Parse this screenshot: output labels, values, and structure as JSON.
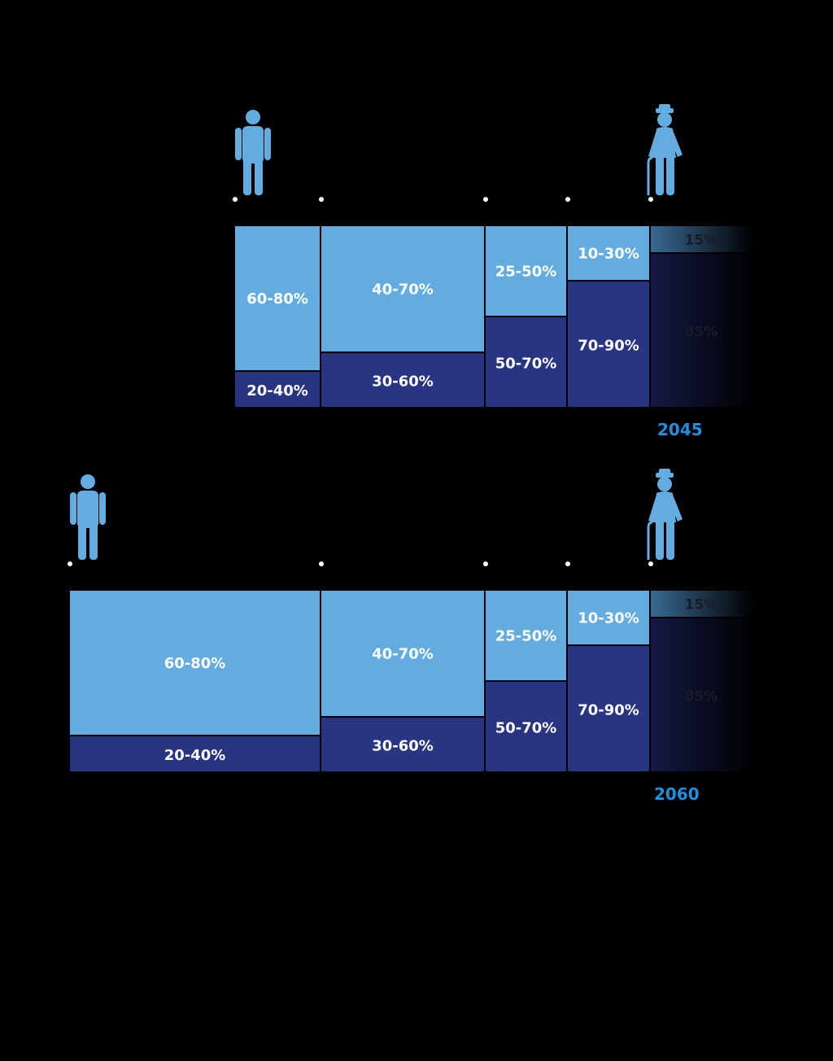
{
  "colors": {
    "light": "#63ace0",
    "dark": "#283583",
    "fade_light": "#3a6b94",
    "fade_dark": "#141a45",
    "year": "#1e90e0",
    "dot": "#ffffff"
  },
  "icons": {
    "start": "person-icon",
    "end": "elderly-person-with-cane-icon"
  },
  "chart_data": [
    {
      "type": "bar",
      "year": "2045",
      "segments": [
        {
          "top_label": "60-80%",
          "top_share": 0.8,
          "bottom_label": "20-40%",
          "bottom_share": 0.2
        },
        {
          "top_label": "40-70%",
          "top_share": 0.7,
          "bottom_label": "30-60%",
          "bottom_share": 0.3
        },
        {
          "top_label": "25-50%",
          "top_share": 0.5,
          "bottom_label": "50-70%",
          "bottom_share": 0.5
        },
        {
          "top_label": "10-30%",
          "top_share": 0.3,
          "bottom_label": "70-90%",
          "bottom_share": 0.7
        },
        {
          "top_label": "15%",
          "top_share": 0.15,
          "bottom_label": "85%",
          "bottom_share": 0.85,
          "faded": true
        }
      ]
    },
    {
      "type": "bar",
      "year": "2060",
      "segments": [
        {
          "top_label": "60-80%",
          "top_share": 0.8,
          "bottom_label": "20-40%",
          "bottom_share": 0.2
        },
        {
          "top_label": "40-70%",
          "top_share": 0.7,
          "bottom_label": "30-60%",
          "bottom_share": 0.3
        },
        {
          "top_label": "25-50%",
          "top_share": 0.5,
          "bottom_label": "50-70%",
          "bottom_share": 0.5
        },
        {
          "top_label": "10-30%",
          "top_share": 0.3,
          "bottom_label": "70-90%",
          "bottom_share": 0.7
        },
        {
          "top_label": "15%",
          "top_share": 0.15,
          "bottom_label": "85%",
          "bottom_share": 0.85,
          "faded": true
        }
      ]
    }
  ]
}
